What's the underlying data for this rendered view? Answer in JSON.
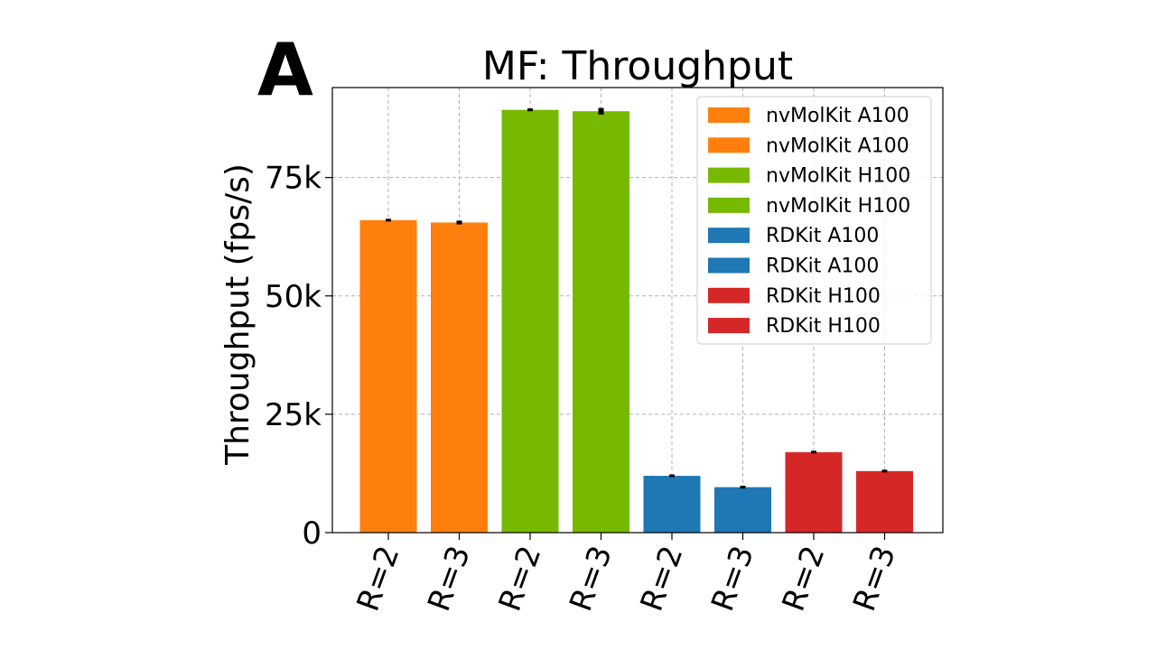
{
  "panel_label": "A",
  "chart_data": {
    "type": "bar",
    "title": "MF: Throughput",
    "xlabel": "",
    "ylabel": "Throughput (fps/s)",
    "ylim": [
      0,
      94000
    ],
    "yticks": [
      {
        "value": 0,
        "label": "0"
      },
      {
        "value": 25000,
        "label": "25k"
      },
      {
        "value": 50000,
        "label": "50k"
      },
      {
        "value": 75000,
        "label": "75k"
      }
    ],
    "grid": true,
    "legend_position": "top-right",
    "categories": [
      "R=2",
      "R=3",
      "R=2",
      "R=3",
      "R=2",
      "R=3",
      "R=2",
      "R=3"
    ],
    "bars": [
      {
        "label": "R=2",
        "series": "nvMolKit A100",
        "value": 66000,
        "error": 0,
        "color": "#ff7f0e"
      },
      {
        "label": "R=3",
        "series": "nvMolKit A100",
        "value": 65500,
        "error": 400,
        "color": "#ff7f0e"
      },
      {
        "label": "R=2",
        "series": "nvMolKit H100",
        "value": 89300,
        "error": 300,
        "color": "#76b900"
      },
      {
        "label": "R=3",
        "series": "nvMolKit H100",
        "value": 89000,
        "error": 700,
        "color": "#76b900"
      },
      {
        "label": "R=2",
        "series": "RDKit A100",
        "value": 12000,
        "error": 0,
        "color": "#1f77b4"
      },
      {
        "label": "R=3",
        "series": "RDKit A100",
        "value": 9600,
        "error": 300,
        "color": "#1f77b4"
      },
      {
        "label": "R=2",
        "series": "RDKit H100",
        "value": 17000,
        "error": 0,
        "color": "#d62728"
      },
      {
        "label": "R=3",
        "series": "RDKit H100",
        "value": 13000,
        "error": 0,
        "color": "#d62728"
      }
    ],
    "legend": [
      {
        "label": "nvMolKit A100",
        "color": "#ff7f0e"
      },
      {
        "label": "nvMolKit A100",
        "color": "#ff7f0e"
      },
      {
        "label": "nvMolKit H100",
        "color": "#76b900"
      },
      {
        "label": "nvMolKit H100",
        "color": "#76b900"
      },
      {
        "label": "RDKit A100",
        "color": "#1f77b4"
      },
      {
        "label": "RDKit A100",
        "color": "#1f77b4"
      },
      {
        "label": "RDKit H100",
        "color": "#d62728"
      },
      {
        "label": "RDKit H100",
        "color": "#d62728"
      }
    ]
  }
}
